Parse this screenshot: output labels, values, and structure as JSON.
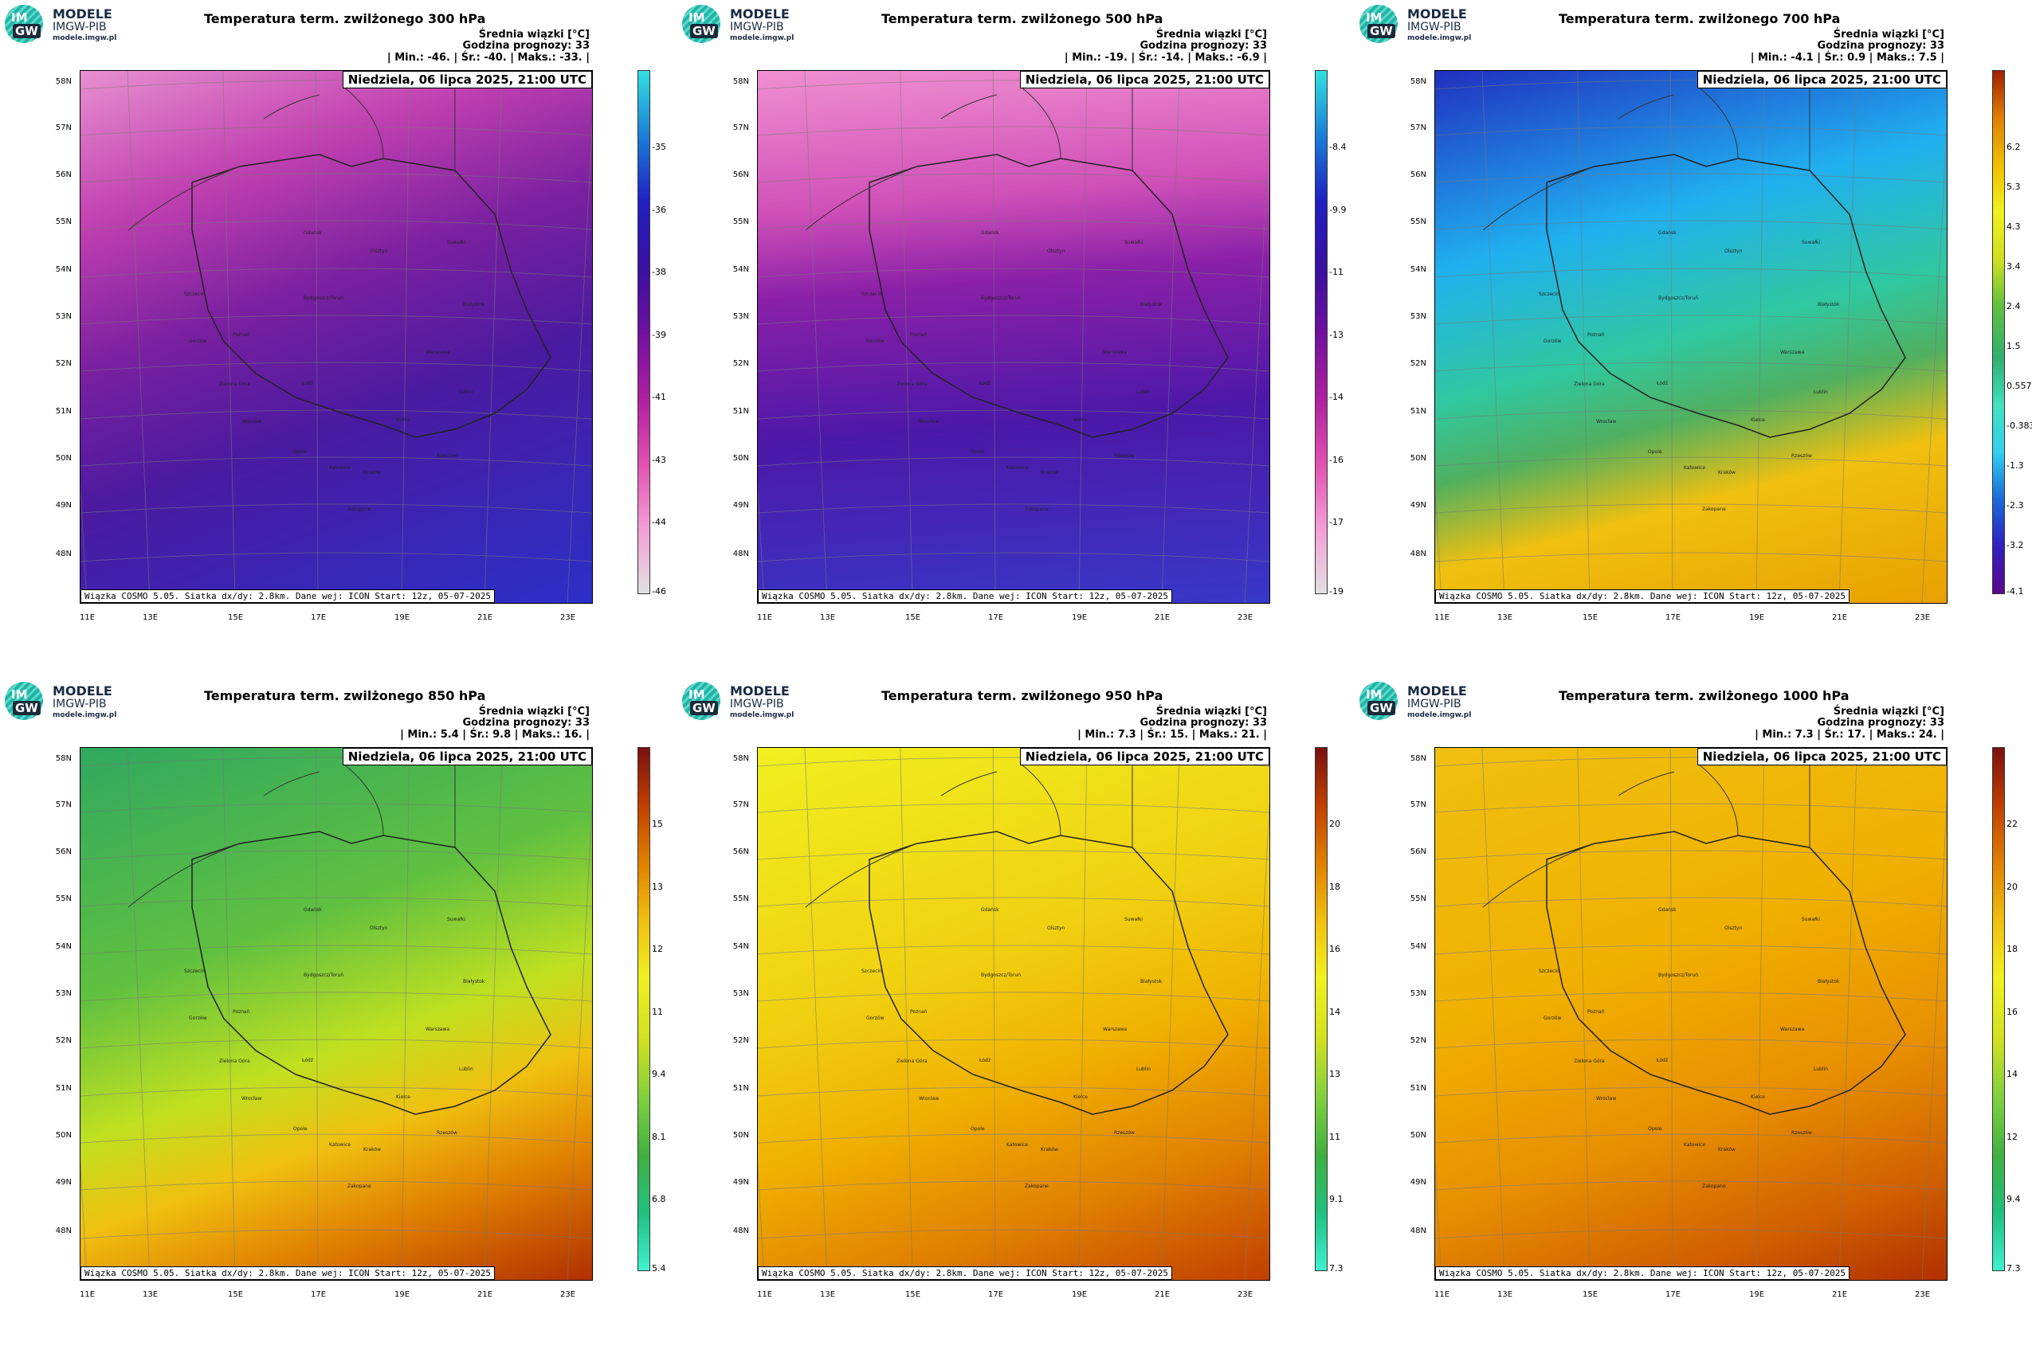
{
  "logo": {
    "line1": "MODELE",
    "line2": "IMGW-PIB",
    "url": "modele.imgw.pl",
    "mark_top": "IM",
    "mark_bottom": "GW"
  },
  "common": {
    "mean_label": "Średnia wiązki [°C]",
    "forecast_hour": "Godzina prognozy: 33",
    "date": "Niedziela, 06 lipca 2025, 21:00 UTC",
    "credit": "Wiązka COSMO 5.05. Siatka dx/dy: 2.8km. Dane wej: ICON Start: 12z, 05-07-2025",
    "lat_labels": [
      "58N",
      "57N",
      "56N",
      "55N",
      "54N",
      "53N",
      "52N",
      "51N",
      "50N",
      "49N",
      "48N"
    ],
    "lon_labels": [
      "11E",
      "13E",
      "15E",
      "17E",
      "19E",
      "21E",
      "23E"
    ],
    "cities": [
      "Gdańsk",
      "Olsztyn",
      "Suwałki",
      "Szczecin",
      "Bydgoszcz/Toruń",
      "Białystok",
      "Gorzów",
      "Poznań",
      "Warszawa",
      "Zielona Góra",
      "Łódź",
      "Lublin",
      "Wrocław",
      "Kielce",
      "Opole",
      "Katowice",
      "Kraków",
      "Rzeszów",
      "Zakopane"
    ]
  },
  "panels": [
    {
      "title": "Temperatura term. zwilżonego 300 hPa",
      "stats": "| Min.:  -46. | Śr.:  -40. | Maks.:  -33. |",
      "colorbar_ticks": [
        "-35",
        "-36",
        "-38",
        "-39",
        "-41",
        "-43",
        "-44",
        "-46"
      ],
      "colors": [
        "#e0e0e0",
        "#f4a0d8",
        "#e050b0",
        "#b020a0",
        "#7010a0",
        "#3a10a0",
        "#2020c0",
        "#1a7ad8",
        "#30e0e0"
      ],
      "map_colors": [
        "#e890d0",
        "#c040b0",
        "#7a20a0",
        "#4a1aa0",
        "#2a30c8"
      ]
    },
    {
      "title": "Temperatura term. zwilżonego 500 hPa",
      "stats": "| Min.:  -19. | Śr.:  -14. | Maks.:  -6.9 |",
      "colorbar_ticks": [
        "-8.4",
        "-9.9",
        "-11",
        "-13",
        "-14",
        "-16",
        "-17",
        "-19"
      ],
      "colors": [
        "#e0e0e0",
        "#f4a0d8",
        "#e050b0",
        "#b020a0",
        "#7010a0",
        "#3a10a0",
        "#2020c0",
        "#1a7ad8",
        "#30e0e0"
      ],
      "map_colors": [
        "#f090d0",
        "#d050b8",
        "#8a20a8",
        "#4c18a8",
        "#3838c8"
      ]
    },
    {
      "title": "Temperatura term. zwilżonego 700 hPa",
      "stats": "| Min.:  -4.1 | Śr.:  0.9 | Maks.:  7.5 |",
      "colorbar_ticks": [
        "6.2",
        "5.3",
        "4.3",
        "3.4",
        "2.4",
        "1.5",
        "0.557",
        "-0.383",
        "-1.3",
        "-2.3",
        "-3.2",
        "-4.1"
      ],
      "colors": [
        "#5a0a8a",
        "#3020c0",
        "#1a6ad8",
        "#30d0f0",
        "#40e0c0",
        "#30b070",
        "#60c040",
        "#d0e020",
        "#f0f020",
        "#f0c000",
        "#e08000",
        "#a02000"
      ],
      "map_colors": [
        "#2030c0",
        "#20b0f0",
        "#30c8a0",
        "#50b060",
        "#f0c010",
        "#e8a000"
      ]
    },
    {
      "title": "Temperatura term. zwilżonego 850 hPa",
      "stats": "| Min.:  5.4 | Śr.:  9.8 | Maks.:  16. |",
      "colorbar_ticks": [
        "15",
        "13",
        "12",
        "11",
        "9.4",
        "8.1",
        "6.8",
        "5.4"
      ],
      "colors": [
        "#40f0d0",
        "#20c080",
        "#40b040",
        "#80d040",
        "#d0e020",
        "#f0f020",
        "#f0c010",
        "#e08000",
        "#c04000",
        "#7a1010"
      ],
      "map_colors": [
        "#30a860",
        "#60c040",
        "#c0e020",
        "#f0c010",
        "#e08000",
        "#b03000"
      ]
    },
    {
      "title": "Temperatura term. zwilżonego 950 hPa",
      "stats": "| Min.:  7.3 | Śr.:  15. | Maks.:  21. |",
      "colorbar_ticks": [
        "20",
        "18",
        "16",
        "14",
        "13",
        "11",
        "9.1",
        "7.3"
      ],
      "colors": [
        "#40f0d0",
        "#20c080",
        "#40b040",
        "#80d040",
        "#d0e020",
        "#f0f020",
        "#f0c010",
        "#e08000",
        "#c04000",
        "#7a1010"
      ],
      "map_colors": [
        "#f0f020",
        "#f0d010",
        "#f0b000",
        "#e08000",
        "#c04000"
      ]
    },
    {
      "title": "Temperatura term. zwilżonego 1000 hPa",
      "stats": "| Min.:  7.3 | Śr.:  17. | Maks.:  24. |",
      "colorbar_ticks": [
        "22",
        "20",
        "18",
        "16",
        "14",
        "12",
        "9.4",
        "7.3"
      ],
      "colors": [
        "#40f0d0",
        "#20c080",
        "#40b040",
        "#80d040",
        "#d0e020",
        "#f0f020",
        "#f0c010",
        "#e08000",
        "#c04000",
        "#7a1010"
      ],
      "map_colors": [
        "#f0c010",
        "#f0b000",
        "#e89000",
        "#d06000",
        "#b03000"
      ]
    }
  ]
}
